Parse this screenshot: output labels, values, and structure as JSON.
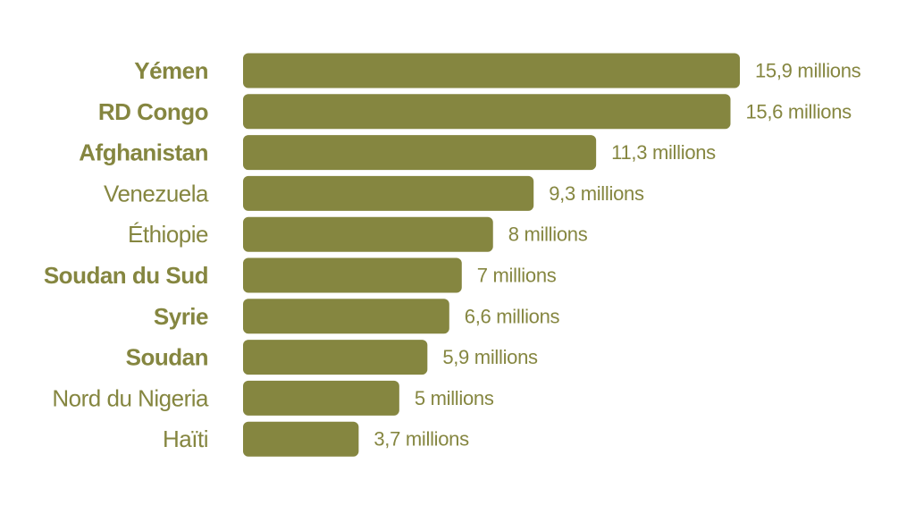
{
  "chart_data": {
    "type": "bar",
    "orientation": "horizontal",
    "categories": [
      "Yémen",
      "RD Congo",
      "Afghanistan",
      "Venezuela",
      "Éthiopie",
      "Soudan du Sud",
      "Syrie",
      "Soudan",
      "Nord du Nigeria",
      "Haïti"
    ],
    "category_bold": [
      true,
      true,
      true,
      false,
      false,
      true,
      true,
      true,
      false,
      false
    ],
    "values": [
      15.9,
      15.6,
      11.3,
      9.3,
      8,
      7,
      6.6,
      5.9,
      5,
      3.7
    ],
    "value_labels": [
      "15,9 millions",
      "15,6 millions",
      "11,3 millions",
      "9,3 millions",
      "8 millions",
      "7 millions",
      "6,6 millions",
      "5,9 millions",
      "5 millions",
      "3,7 millions"
    ],
    "title": "",
    "xlabel": "",
    "ylabel": "",
    "xlim": [
      0,
      15.9
    ],
    "grid": false,
    "legend": "none"
  },
  "colors": {
    "bar": "#858640",
    "text": "#858640"
  }
}
